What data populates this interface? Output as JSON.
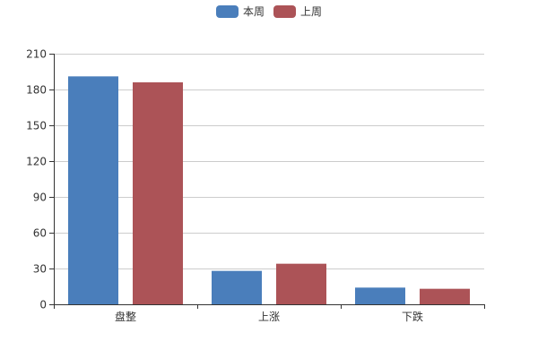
{
  "chart_data": {
    "type": "bar",
    "categories": [
      "盘整",
      "上涨",
      "下跌"
    ],
    "series": [
      {
        "name": "本周",
        "color": "#4a7ebb",
        "values": [
          191,
          28,
          14
        ]
      },
      {
        "name": "上周",
        "color": "#ac5357",
        "values": [
          186,
          34,
          13
        ]
      }
    ],
    "ylim": [
      0,
      210
    ],
    "yticks": [
      0,
      30,
      60,
      90,
      120,
      150,
      180,
      210
    ],
    "grid": true,
    "legend_position": "top-center"
  }
}
